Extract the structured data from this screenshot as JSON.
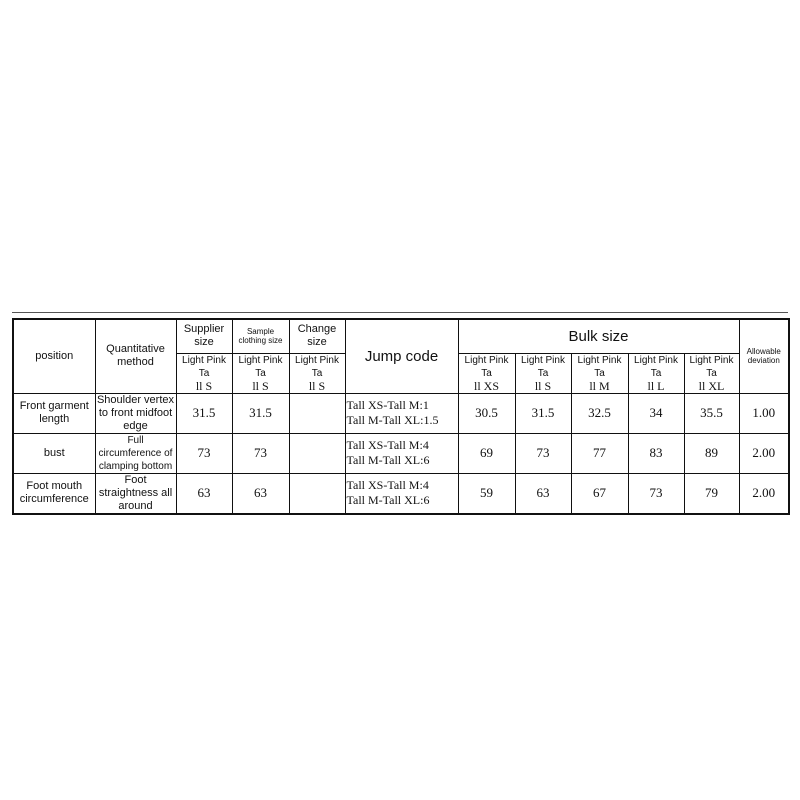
{
  "headers": {
    "position": "position",
    "method": "Quantitative method",
    "supplier": "Supplier size",
    "sample": "Sample clothing size",
    "change": "Change size",
    "jump": "Jump code",
    "bulk": "Bulk size",
    "deviation": "Allowable deviation",
    "sub_prefix": "Light Pink Ta",
    "supplier_size": "ll S",
    "sample_size": "ll S",
    "change_size": "ll S",
    "bulk_sizes": [
      "ll XS",
      "ll S",
      "ll M",
      "ll L",
      "ll XL"
    ]
  },
  "rows": [
    {
      "position": "Front garment length",
      "method": "Shoulder vertex to front midfoot edge",
      "supplier": "31.5",
      "sample": "31.5",
      "change": "",
      "jump": [
        "Tall XS-Tall M:1",
        "Tall M-Tall XL:1.5"
      ],
      "bulk": [
        "30.5",
        "31.5",
        "32.5",
        "34",
        "35.5"
      ],
      "deviation": "1.00"
    },
    {
      "position": "bust",
      "method": "Full circumference of clamping bottom",
      "supplier": "73",
      "sample": "73",
      "change": "",
      "jump": [
        "Tall XS-Tall M:4",
        "Tall M-Tall XL:6"
      ],
      "bulk": [
        "69",
        "73",
        "77",
        "83",
        "89"
      ],
      "deviation": "2.00"
    },
    {
      "position": "Foot mouth circumference",
      "method": "Foot straightness all around",
      "supplier": "63",
      "sample": "63",
      "change": "",
      "jump": [
        "Tall XS-Tall M:4",
        "Tall M-Tall XL:6"
      ],
      "bulk": [
        "59",
        "63",
        "67",
        "73",
        "79"
      ],
      "deviation": "2.00"
    }
  ]
}
